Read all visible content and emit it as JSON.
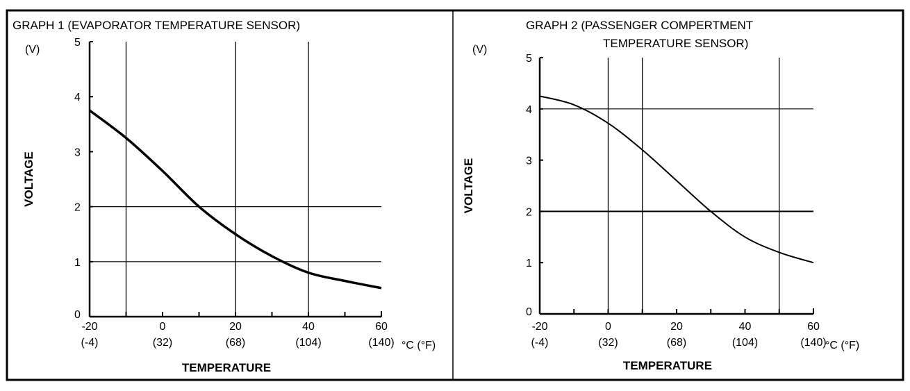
{
  "chart_data": [
    {
      "type": "line",
      "title": "GRAPH 1 (EVAPORATOR TEMPERATURE SENSOR)",
      "title_lines": [
        "GRAPH 1 (EVAPORATOR TEMPERATURE SENSOR)"
      ],
      "ylabel": "VOLTAGE",
      "yunit": "(V)",
      "xlabel": "TEMPERATURE",
      "xunit": "°C (°F)",
      "xlim": [
        -20,
        60
      ],
      "ylim": [
        0,
        5
      ],
      "x_ticks": [
        -20,
        0,
        20,
        40,
        60
      ],
      "x_ticks_f": [
        "(-4)",
        "(32)",
        "(68)",
        "(104)",
        "(140)"
      ],
      "y_ticks": [
        0,
        1,
        2,
        3,
        4,
        5
      ],
      "vertical_gridlines": [
        -10,
        20,
        40
      ],
      "horizontal_gridlines": [
        1,
        2
      ],
      "x": [
        -20,
        -10,
        0,
        10,
        20,
        30,
        40,
        50,
        60
      ],
      "y": [
        3.75,
        3.25,
        2.65,
        2.0,
        1.5,
        1.1,
        0.8,
        0.65,
        0.52
      ],
      "line_color": "#000000"
    },
    {
      "type": "line",
      "title": "GRAPH 2  (PASSENGER COMPERTMENT TEMPERATURE SENSOR)",
      "title_lines": [
        "GRAPH 2  (PASSENGER COMPERTMENT",
        "TEMPERATURE SENSOR)"
      ],
      "ylabel": "VOLTAGE",
      "yunit": "(V)",
      "xlabel": "TEMPERATURE",
      "xunit": "°C (°F)",
      "xlim": [
        -20,
        60
      ],
      "ylim": [
        0,
        5
      ],
      "x_ticks": [
        -20,
        0,
        20,
        40,
        60
      ],
      "x_ticks_f": [
        "(-4)",
        "(32)",
        "(68)",
        "(104)",
        "(140)"
      ],
      "y_ticks": [
        0,
        1,
        2,
        3,
        4,
        5
      ],
      "vertical_gridlines": [
        0,
        10,
        50
      ],
      "horizontal_gridlines": [
        2,
        4
      ],
      "x": [
        -20,
        -10,
        0,
        10,
        20,
        30,
        40,
        50,
        60
      ],
      "y": [
        4.25,
        4.08,
        3.72,
        3.2,
        2.6,
        2.0,
        1.5,
        1.2,
        1.0
      ],
      "line_color": "#000000"
    }
  ]
}
